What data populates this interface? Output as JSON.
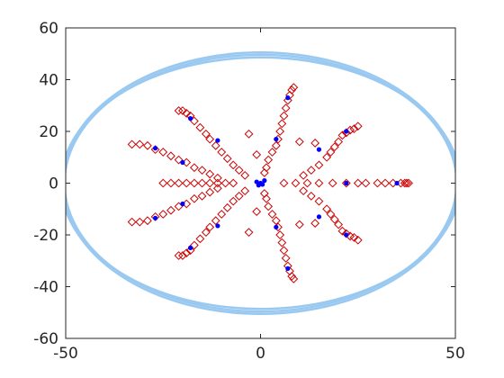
{
  "chart_data": {
    "type": "scatter",
    "title": "",
    "xlabel": "",
    "ylabel": "",
    "xlim": [
      -50,
      50
    ],
    "ylim": [
      -60,
      60
    ],
    "xticks": [
      -50,
      0,
      50
    ],
    "yticks": [
      -60,
      -40,
      -20,
      0,
      20,
      40,
      60
    ],
    "grid": false,
    "legend": "none",
    "colors": {
      "ellipse": "#99c9f0",
      "open_markers": "#cc0000",
      "filled_points": "#0000ff",
      "axes": "#262626"
    },
    "ellipses": [
      {
        "cx": 0,
        "cy": 0,
        "rx": 50.8,
        "ry": 50.5
      },
      {
        "cx": 0,
        "cy": 0,
        "rx": 50.3,
        "ry": 49.6
      },
      {
        "cx": 0,
        "cy": 0,
        "rx": 51.2,
        "ry": 48.6
      }
    ],
    "open_markers": [
      [
        -17,
        0
      ],
      [
        -15,
        0
      ],
      [
        -13,
        0
      ],
      [
        -11,
        0
      ],
      [
        -9,
        0
      ],
      [
        -7,
        0
      ],
      [
        -25,
        0
      ],
      [
        -23,
        0
      ],
      [
        -21,
        0
      ],
      [
        -19,
        0
      ],
      [
        -31,
        15
      ],
      [
        -29,
        14.5
      ],
      [
        -27,
        13
      ],
      [
        -25,
        12
      ],
      [
        -23,
        10.5
      ],
      [
        -21,
        9
      ],
      [
        -19,
        8
      ],
      [
        -17,
        6
      ],
      [
        -15,
        5
      ],
      [
        -13,
        3.5
      ],
      [
        -11,
        2
      ],
      [
        -31,
        -15
      ],
      [
        -29,
        -14.5
      ],
      [
        -27,
        -13
      ],
      [
        -25,
        -12
      ],
      [
        -23,
        -10.5
      ],
      [
        -21,
        -9
      ],
      [
        -19,
        -8
      ],
      [
        -17,
        -6
      ],
      [
        -15,
        -5
      ],
      [
        -13,
        -3.5
      ],
      [
        -11,
        -2
      ],
      [
        -33,
        15
      ],
      [
        -33,
        -15
      ],
      [
        -20,
        28
      ],
      [
        -19,
        27
      ],
      [
        -18,
        26
      ],
      [
        -17,
        24
      ],
      [
        -15.5,
        21.5
      ],
      [
        -14,
        19
      ],
      [
        -13,
        17
      ],
      [
        -11.5,
        14.5
      ],
      [
        -10,
        12
      ],
      [
        -8.5,
        9.5
      ],
      [
        -7,
        7
      ],
      [
        -5.5,
        5
      ],
      [
        -4,
        3
      ],
      [
        -3,
        19
      ],
      [
        -20,
        -28
      ],
      [
        -19,
        -27
      ],
      [
        -18,
        -26
      ],
      [
        -17,
        -24
      ],
      [
        -15.5,
        -21.5
      ],
      [
        -14,
        -19
      ],
      [
        -13,
        -17
      ],
      [
        -11.5,
        -14.5
      ],
      [
        -10,
        -12
      ],
      [
        -8.5,
        -9.5
      ],
      [
        -7,
        -7
      ],
      [
        -5.5,
        -5
      ],
      [
        -4,
        -3
      ],
      [
        -3,
        -19
      ],
      [
        -21,
        28
      ],
      [
        -21,
        -28
      ],
      [
        8,
        36
      ],
      [
        7.5,
        34
      ],
      [
        7,
        32
      ],
      [
        6.5,
        29
      ],
      [
        6,
        26
      ],
      [
        5.5,
        23
      ],
      [
        5,
        20
      ],
      [
        4.5,
        17
      ],
      [
        4,
        14.5
      ],
      [
        3,
        12
      ],
      [
        2,
        9
      ],
      [
        1.5,
        6
      ],
      [
        1,
        4
      ],
      [
        -1,
        11
      ],
      [
        8,
        -36
      ],
      [
        7.5,
        -34
      ],
      [
        7,
        -32
      ],
      [
        6.5,
        -29
      ],
      [
        6,
        -26
      ],
      [
        5.5,
        -23
      ],
      [
        5,
        -20
      ],
      [
        4.5,
        -17
      ],
      [
        4,
        -14.5
      ],
      [
        3,
        -12
      ],
      [
        2,
        -9
      ],
      [
        1.5,
        -6
      ],
      [
        1,
        -4
      ],
      [
        -1,
        -11
      ],
      [
        8.5,
        37
      ],
      [
        8.5,
        -37
      ],
      [
        24,
        21
      ],
      [
        23,
        20.5
      ],
      [
        22,
        19.5
      ],
      [
        21,
        18.5
      ],
      [
        20,
        16
      ],
      [
        19,
        14
      ],
      [
        18,
        12
      ],
      [
        17,
        10
      ],
      [
        15,
        7
      ],
      [
        13,
        5
      ],
      [
        11,
        3
      ],
      [
        10,
        16
      ],
      [
        14,
        15.5
      ],
      [
        24,
        -21
      ],
      [
        23,
        -20.5
      ],
      [
        22,
        -19.5
      ],
      [
        21,
        -18.5
      ],
      [
        20,
        -16
      ],
      [
        19,
        -14
      ],
      [
        18,
        -12
      ],
      [
        17,
        -10
      ],
      [
        15,
        -7
      ],
      [
        13,
        -5
      ],
      [
        11,
        -3
      ],
      [
        10,
        -16
      ],
      [
        14,
        -15.5
      ],
      [
        25,
        22
      ],
      [
        25,
        -22
      ],
      [
        36,
        0
      ],
      [
        37,
        0
      ],
      [
        37.5,
        0
      ],
      [
        38,
        0
      ],
      [
        34,
        0
      ],
      [
        32,
        0
      ],
      [
        30,
        0
      ],
      [
        27,
        0
      ],
      [
        25,
        0
      ],
      [
        22,
        0
      ],
      [
        18.5,
        0
      ],
      [
        15,
        0
      ],
      [
        12,
        0
      ],
      [
        9,
        0
      ],
      [
        6,
        0
      ]
    ],
    "filled_points": [
      [
        0,
        0
      ],
      [
        -1,
        0.5
      ],
      [
        0.5,
        -0.5
      ],
      [
        1,
        1
      ],
      [
        -0.5,
        -0.8
      ],
      [
        -20,
        8
      ],
      [
        -20,
        -8
      ],
      [
        -27,
        13.5
      ],
      [
        -27,
        -13.5
      ],
      [
        -18,
        25
      ],
      [
        -18,
        -25
      ],
      [
        -11,
        16.5
      ],
      [
        -11,
        -16.5
      ],
      [
        7,
        33
      ],
      [
        7,
        -33
      ],
      [
        4,
        17
      ],
      [
        4,
        -17
      ],
      [
        15,
        13
      ],
      [
        15,
        -13
      ],
      [
        22,
        20
      ],
      [
        22,
        -20
      ],
      [
        22,
        0
      ],
      [
        35,
        0
      ]
    ]
  }
}
